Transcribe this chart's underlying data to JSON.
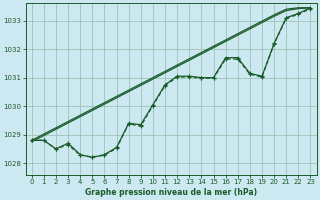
{
  "background_color": "#cce8f0",
  "plot_bg_color": "#cce8f0",
  "grid_color": "#99bbaa",
  "line_color": "#1a5c2a",
  "xlabel": "Graphe pression niveau de la mer (hPa)",
  "ylim": [
    1027.6,
    1033.6
  ],
  "xlim": [
    -0.5,
    23.5
  ],
  "yticks": [
    1028,
    1029,
    1030,
    1031,
    1032,
    1033
  ],
  "xticks": [
    0,
    1,
    2,
    3,
    4,
    5,
    6,
    7,
    8,
    9,
    10,
    11,
    12,
    13,
    14,
    15,
    16,
    17,
    18,
    19,
    20,
    21,
    22,
    23
  ],
  "line1_y": [
    1028.8,
    1028.8,
    1028.5,
    1028.7,
    1028.3,
    1028.2,
    1028.3,
    1028.55,
    1029.4,
    1029.35,
    1030.05,
    1030.75,
    1031.05,
    1031.05,
    1031.0,
    1031.0,
    1031.7,
    1031.7,
    1031.15,
    1031.05,
    1032.2,
    1033.1,
    1033.25,
    1033.45
  ],
  "straight1_y": [
    1028.8,
    1029.02,
    1029.24,
    1029.46,
    1029.68,
    1029.9,
    1030.12,
    1030.34,
    1030.56,
    1030.78,
    1031.0,
    1031.22,
    1031.44,
    1031.66,
    1031.88,
    1032.1,
    1032.32,
    1032.54,
    1032.76,
    1032.98,
    1033.2,
    1033.4,
    1033.45,
    1033.45
  ],
  "straight2_y": [
    1028.75,
    1028.97,
    1029.19,
    1029.41,
    1029.63,
    1029.85,
    1030.07,
    1030.29,
    1030.51,
    1030.73,
    1030.95,
    1031.17,
    1031.39,
    1031.61,
    1031.83,
    1032.05,
    1032.27,
    1032.49,
    1032.71,
    1032.93,
    1033.15,
    1033.35,
    1033.42,
    1033.45
  ],
  "dotted_y": [
    1028.8,
    1028.8,
    1028.5,
    1028.65,
    1028.28,
    1028.22,
    1028.28,
    1028.52,
    1029.38,
    1029.3,
    1030.02,
    1030.72,
    1031.02,
    1031.02,
    1030.98,
    1030.98,
    1031.65,
    1031.65,
    1031.12,
    1031.02,
    1032.18,
    1033.08,
    1033.22,
    1033.42
  ],
  "font_color": "#1a5c2a",
  "marker_size": 3.5,
  "line_width": 0.9,
  "tick_fontsize": 5.0,
  "xlabel_fontsize": 5.5
}
